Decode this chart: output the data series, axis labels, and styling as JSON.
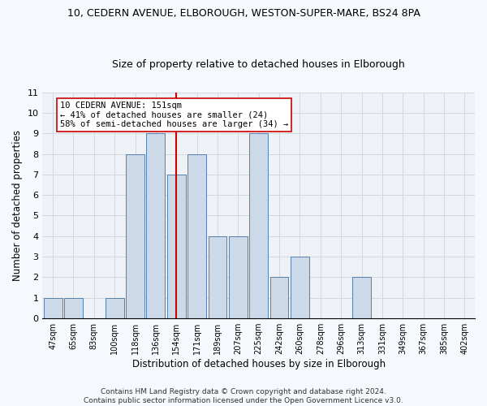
{
  "title1": "10, CEDERN AVENUE, ELBOROUGH, WESTON-SUPER-MARE, BS24 8PA",
  "title2": "Size of property relative to detached houses in Elborough",
  "xlabel": "Distribution of detached houses by size in Elborough",
  "ylabel": "Number of detached properties",
  "bin_labels": [
    "47sqm",
    "65sqm",
    "83sqm",
    "100sqm",
    "118sqm",
    "136sqm",
    "154sqm",
    "171sqm",
    "189sqm",
    "207sqm",
    "225sqm",
    "242sqm",
    "260sqm",
    "278sqm",
    "296sqm",
    "313sqm",
    "331sqm",
    "349sqm",
    "367sqm",
    "385sqm",
    "402sqm"
  ],
  "values": [
    1,
    1,
    0,
    1,
    8,
    9,
    7,
    8,
    4,
    4,
    9,
    2,
    3,
    0,
    0,
    2,
    0,
    0,
    0,
    0,
    0
  ],
  "property_line_index": 6,
  "bar_color": "#ccd9e8",
  "bar_edge_color": "#5580aa",
  "line_color": "#cc0000",
  "annotation_text": "10 CEDERN AVENUE: 151sqm\n← 41% of detached houses are smaller (24)\n58% of semi-detached houses are larger (34) →",
  "annotation_box_color": "#ffffff",
  "annotation_box_edge": "#cc0000",
  "ylim": [
    0,
    11
  ],
  "yticks": [
    0,
    1,
    2,
    3,
    4,
    5,
    6,
    7,
    8,
    9,
    10,
    11
  ],
  "footer": "Contains HM Land Registry data © Crown copyright and database right 2024.\nContains public sector information licensed under the Open Government Licence v3.0.",
  "bg_color": "#eef2f7",
  "fig_bg_color": "#f5f8fc",
  "grid_color": "#d0d8e0"
}
